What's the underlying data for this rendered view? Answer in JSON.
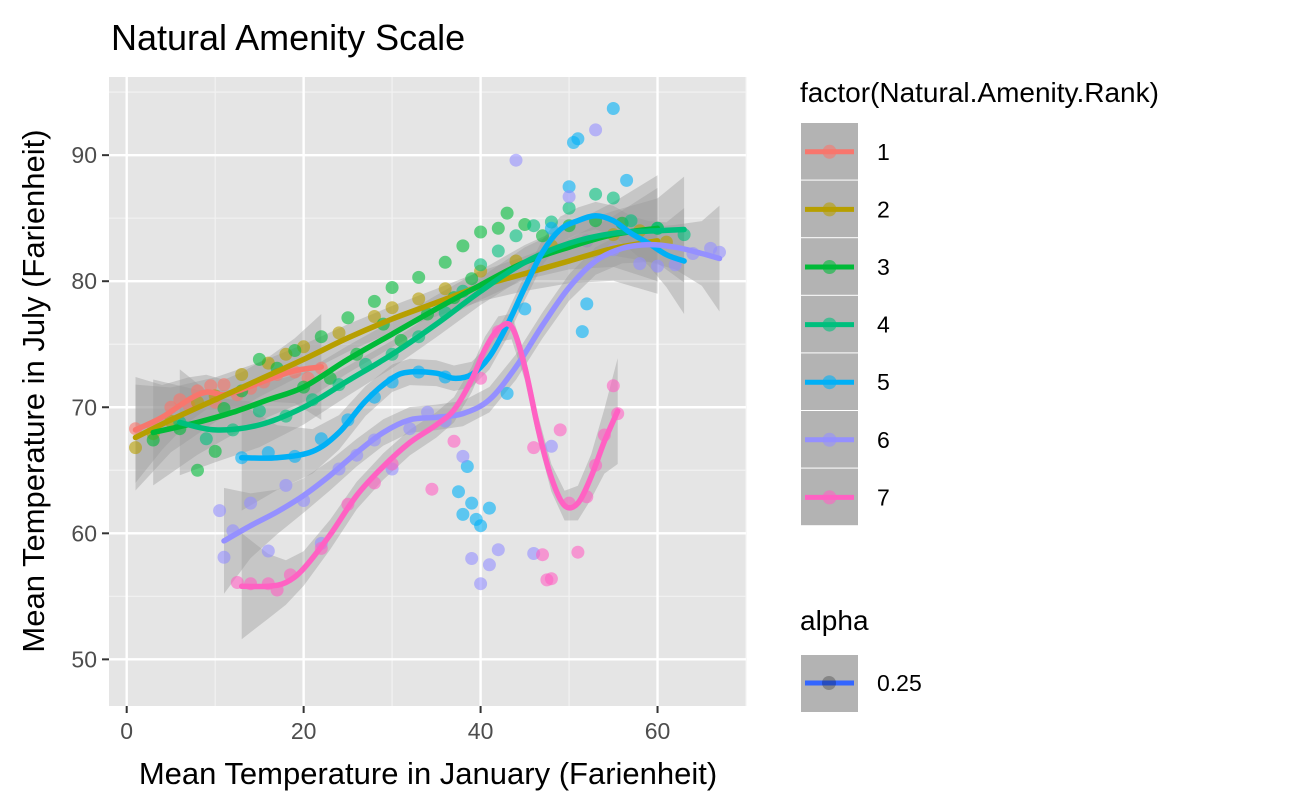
{
  "chart_data": {
    "type": "scatter",
    "title": "Natural Amenity Scale",
    "xlabel": "Mean Temperature in January (Farienheit)",
    "ylabel": "Mean Temperature in July (Farienheit)",
    "xlim": [
      -2,
      70
    ],
    "ylim": [
      46.3,
      96.2
    ],
    "x_ticks": [
      0,
      20,
      40,
      60
    ],
    "y_ticks": [
      50,
      60,
      70,
      80,
      90
    ],
    "grid": true,
    "panel_background": "#e5e5e5",
    "smoother": "loess with grey confidence band",
    "legend": {
      "placement": "right",
      "color_title": "factor(Natural.Amenity.Rank)",
      "alpha_title": "alpha",
      "alpha_label": "0.25"
    },
    "series": [
      {
        "name": "1",
        "color": "#F8766D",
        "points": [
          [
            1.0,
            68.3
          ],
          [
            3.0,
            68.5
          ],
          [
            5.0,
            70.0
          ],
          [
            6.0,
            70.6
          ],
          [
            7.0,
            70.2
          ],
          [
            8.0,
            71.3
          ],
          [
            9.5,
            71.7
          ],
          [
            10.0,
            70.4
          ],
          [
            11.0,
            71.8
          ],
          [
            12.5,
            71.0
          ],
          [
            14.0,
            71.5
          ],
          [
            15.5,
            72.0
          ],
          [
            17.0,
            72.6
          ],
          [
            19.0,
            72.8
          ],
          [
            20.5,
            72.3
          ],
          [
            22.0,
            73.1
          ]
        ],
        "smooth": [
          [
            1.0,
            68.2
          ],
          [
            4.0,
            69.2
          ],
          [
            7.0,
            70.6
          ],
          [
            9.0,
            71.2
          ],
          [
            11.0,
            71.0
          ],
          [
            13.0,
            71.4
          ],
          [
            16.0,
            72.2
          ],
          [
            19.0,
            72.9
          ],
          [
            22.0,
            73.2
          ]
        ]
      },
      {
        "name": "2",
        "color": "#B79F00",
        "points": [
          [
            1.0,
            66.8
          ],
          [
            3.0,
            67.9
          ],
          [
            5.0,
            68.9
          ],
          [
            8.0,
            70.4
          ],
          [
            10.0,
            70.9
          ],
          [
            13.0,
            72.6
          ],
          [
            16.0,
            73.5
          ],
          [
            18.0,
            74.2
          ],
          [
            20.0,
            74.8
          ],
          [
            24.0,
            75.9
          ],
          [
            28.0,
            77.2
          ],
          [
            30.0,
            77.9
          ],
          [
            33.0,
            78.6
          ],
          [
            36.0,
            79.4
          ],
          [
            40.0,
            80.8
          ],
          [
            44.0,
            81.6
          ],
          [
            48.0,
            82.8
          ],
          [
            52.0,
            83.2
          ],
          [
            55.0,
            83.7
          ],
          [
            58.0,
            84.0
          ],
          [
            61.0,
            83.1
          ]
        ],
        "smooth": [
          [
            1.0,
            67.6
          ],
          [
            5.0,
            69.0
          ],
          [
            10.0,
            70.6
          ],
          [
            15.0,
            72.2
          ],
          [
            20.0,
            73.8
          ],
          [
            25.0,
            75.5
          ],
          [
            30.0,
            77.0
          ],
          [
            35.0,
            78.3
          ],
          [
            40.0,
            79.6
          ],
          [
            45.0,
            80.6
          ],
          [
            50.0,
            81.6
          ],
          [
            55.0,
            82.6
          ],
          [
            60.0,
            83.2
          ]
        ]
      },
      {
        "name": "3",
        "color": "#00BA38",
        "points": [
          [
            3.0,
            67.4
          ],
          [
            6.0,
            68.3
          ],
          [
            8.0,
            65.0
          ],
          [
            10.0,
            66.5
          ],
          [
            11.0,
            69.9
          ],
          [
            13.0,
            71.3
          ],
          [
            15.0,
            73.8
          ],
          [
            17.0,
            73.1
          ],
          [
            19.0,
            74.5
          ],
          [
            20.0,
            71.6
          ],
          [
            22.0,
            75.6
          ],
          [
            23.0,
            72.3
          ],
          [
            25.0,
            77.1
          ],
          [
            26.0,
            74.2
          ],
          [
            28.0,
            78.4
          ],
          [
            29.0,
            76.6
          ],
          [
            30.0,
            79.5
          ],
          [
            31.0,
            75.3
          ],
          [
            33.0,
            80.3
          ],
          [
            34.0,
            77.4
          ],
          [
            36.0,
            81.5
          ],
          [
            37.0,
            78.7
          ],
          [
            38.0,
            82.8
          ],
          [
            39.0,
            80.2
          ],
          [
            40.0,
            83.9
          ],
          [
            42.0,
            84.2
          ],
          [
            43.0,
            85.4
          ],
          [
            45.0,
            84.5
          ],
          [
            47.0,
            83.6
          ],
          [
            50.0,
            84.4
          ],
          [
            53.0,
            84.8
          ],
          [
            56.0,
            84.6
          ],
          [
            60.0,
            84.2
          ]
        ],
        "smooth": [
          [
            3.0,
            68.0
          ],
          [
            8.0,
            68.8
          ],
          [
            12.0,
            69.6
          ],
          [
            16.0,
            70.6
          ],
          [
            20.0,
            71.6
          ],
          [
            25.0,
            73.8
          ],
          [
            30.0,
            75.8
          ],
          [
            35.0,
            77.8
          ],
          [
            40.0,
            79.7
          ],
          [
            45.0,
            81.5
          ],
          [
            50.0,
            82.7
          ],
          [
            55.0,
            83.7
          ],
          [
            60.0,
            84.2
          ]
        ]
      },
      {
        "name": "4",
        "color": "#00BF7D",
        "points": [
          [
            6.0,
            68.8
          ],
          [
            9.0,
            67.5
          ],
          [
            12.0,
            68.2
          ],
          [
            15.0,
            69.7
          ],
          [
            18.0,
            69.3
          ],
          [
            21.0,
            70.6
          ],
          [
            24.0,
            71.8
          ],
          [
            27.0,
            73.4
          ],
          [
            30.0,
            74.2
          ],
          [
            33.0,
            75.6
          ],
          [
            36.0,
            77.5
          ],
          [
            38.0,
            79.2
          ],
          [
            40.0,
            81.3
          ],
          [
            42.0,
            82.4
          ],
          [
            44.0,
            83.6
          ],
          [
            46.0,
            84.4
          ],
          [
            48.0,
            84.7
          ],
          [
            50.0,
            85.8
          ],
          [
            53.0,
            86.9
          ],
          [
            55.0,
            86.6
          ],
          [
            57.0,
            84.8
          ],
          [
            60.0,
            84.2
          ],
          [
            63.0,
            83.7
          ]
        ],
        "smooth": [
          [
            6.0,
            68.8
          ],
          [
            10.0,
            68.2
          ],
          [
            15.0,
            68.6
          ],
          [
            20.0,
            70.0
          ],
          [
            25.0,
            72.1
          ],
          [
            30.0,
            74.2
          ],
          [
            35.0,
            76.6
          ],
          [
            40.0,
            79.2
          ],
          [
            45.0,
            81.5
          ],
          [
            50.0,
            83.0
          ],
          [
            55.0,
            83.8
          ],
          [
            60.0,
            84.0
          ],
          [
            63.0,
            84.1
          ]
        ]
      },
      {
        "name": "5",
        "color": "#00B0F6",
        "points": [
          [
            13.0,
            66.0
          ],
          [
            16.0,
            66.4
          ],
          [
            19.0,
            66.1
          ],
          [
            22.0,
            67.5
          ],
          [
            25.0,
            69.0
          ],
          [
            28.0,
            70.8
          ],
          [
            30.0,
            72.0
          ],
          [
            33.0,
            72.8
          ],
          [
            36.0,
            72.4
          ],
          [
            37.5,
            63.3
          ],
          [
            38.0,
            61.5
          ],
          [
            38.5,
            65.3
          ],
          [
            39.0,
            62.4
          ],
          [
            39.5,
            61.1
          ],
          [
            40.0,
            60.6
          ],
          [
            41.0,
            62.0
          ],
          [
            43.0,
            71.1
          ],
          [
            45.0,
            77.8
          ],
          [
            48.0,
            84.2
          ],
          [
            50.0,
            87.5
          ],
          [
            50.5,
            91.0
          ],
          [
            51.0,
            91.3
          ],
          [
            51.5,
            76.0
          ],
          [
            52.0,
            78.2
          ],
          [
            55.0,
            93.7
          ],
          [
            56.5,
            88.0
          ]
        ],
        "smooth": [
          [
            13.0,
            66.0
          ],
          [
            17.0,
            66.0
          ],
          [
            21.0,
            66.5
          ],
          [
            24.0,
            68.0
          ],
          [
            27.0,
            70.5
          ],
          [
            30.0,
            72.3
          ],
          [
            32.0,
            72.8
          ],
          [
            35.0,
            72.7
          ],
          [
            37.0,
            72.3
          ],
          [
            39.0,
            72.6
          ],
          [
            41.0,
            74.0
          ],
          [
            43.0,
            76.5
          ],
          [
            45.0,
            79.5
          ],
          [
            47.0,
            82.3
          ],
          [
            49.0,
            84.1
          ],
          [
            51.0,
            84.8
          ],
          [
            53.0,
            85.2
          ],
          [
            55.0,
            84.8
          ],
          [
            57.0,
            83.8
          ],
          [
            59.0,
            83.0
          ],
          [
            61.0,
            82.1
          ],
          [
            63.0,
            81.6
          ]
        ]
      },
      {
        "name": "6",
        "color": "#9590FF",
        "points": [
          [
            10.5,
            61.8
          ],
          [
            11.0,
            58.1
          ],
          [
            12.0,
            60.2
          ],
          [
            14.0,
            62.4
          ],
          [
            16.0,
            58.6
          ],
          [
            18.0,
            63.8
          ],
          [
            20.0,
            62.6
          ],
          [
            22.0,
            59.2
          ],
          [
            24.0,
            65.1
          ],
          [
            26.0,
            66.2
          ],
          [
            28.0,
            67.4
          ],
          [
            30.0,
            65.1
          ],
          [
            32.0,
            68.3
          ],
          [
            34.0,
            69.6
          ],
          [
            36.0,
            68.9
          ],
          [
            38.0,
            66.1
          ],
          [
            39.0,
            58.0
          ],
          [
            40.0,
            56.0
          ],
          [
            41.0,
            57.5
          ],
          [
            42.0,
            58.7
          ],
          [
            44.0,
            89.6
          ],
          [
            46.0,
            58.4
          ],
          [
            48.0,
            66.9
          ],
          [
            50.0,
            86.7
          ],
          [
            52.0,
            83.2
          ],
          [
            53.0,
            92.0
          ],
          [
            55.0,
            82.5
          ],
          [
            58.0,
            81.4
          ],
          [
            60.0,
            81.2
          ],
          [
            62.0,
            81.3
          ],
          [
            64.0,
            82.2
          ],
          [
            66.0,
            82.6
          ],
          [
            67.0,
            82.3
          ]
        ],
        "smooth": [
          [
            11.0,
            59.4
          ],
          [
            14.0,
            60.6
          ],
          [
            17.0,
            61.7
          ],
          [
            20.0,
            63.0
          ],
          [
            23.0,
            64.6
          ],
          [
            26.0,
            66.4
          ],
          [
            29.0,
            68.0
          ],
          [
            32.0,
            69.0
          ],
          [
            35.0,
            69.2
          ],
          [
            38.0,
            69.5
          ],
          [
            41.0,
            70.6
          ],
          [
            44.0,
            73.2
          ],
          [
            47.0,
            76.5
          ],
          [
            50.0,
            79.5
          ],
          [
            53.0,
            81.6
          ],
          [
            56.0,
            82.6
          ],
          [
            59.0,
            82.9
          ],
          [
            62.0,
            82.7
          ],
          [
            65.0,
            82.2
          ],
          [
            67.0,
            81.8
          ]
        ]
      },
      {
        "name": "7",
        "color": "#FF61C3",
        "points": [
          [
            12.5,
            56.1
          ],
          [
            14.0,
            56.0
          ],
          [
            16.0,
            56.0
          ],
          [
            17.0,
            55.5
          ],
          [
            18.5,
            56.7
          ],
          [
            22.0,
            58.8
          ],
          [
            25.0,
            62.3
          ],
          [
            28.0,
            64.0
          ],
          [
            30.0,
            65.5
          ],
          [
            34.5,
            63.5
          ],
          [
            37.0,
            67.3
          ],
          [
            40.0,
            72.3
          ],
          [
            42.0,
            76.0
          ],
          [
            46.0,
            66.8
          ],
          [
            47.0,
            58.3
          ],
          [
            47.5,
            56.3
          ],
          [
            48.0,
            56.4
          ],
          [
            49.0,
            68.2
          ],
          [
            50.0,
            62.4
          ],
          [
            51.0,
            58.5
          ],
          [
            52.0,
            62.9
          ],
          [
            53.0,
            65.4
          ],
          [
            54.0,
            67.8
          ],
          [
            55.0,
            71.7
          ],
          [
            55.5,
            69.5
          ]
        ],
        "smooth": [
          [
            13.0,
            55.8
          ],
          [
            16.0,
            55.8
          ],
          [
            18.0,
            56.1
          ],
          [
            20.0,
            57.2
          ],
          [
            23.0,
            59.9
          ],
          [
            26.0,
            63.0
          ],
          [
            29.0,
            65.3
          ],
          [
            32.0,
            67.2
          ],
          [
            35.0,
            68.6
          ],
          [
            37.0,
            69.8
          ],
          [
            39.0,
            72.2
          ],
          [
            40.5,
            74.6
          ],
          [
            42.0,
            76.2
          ],
          [
            43.5,
            76.4
          ],
          [
            45.0,
            73.2
          ],
          [
            46.5,
            68.3
          ],
          [
            48.0,
            64.4
          ],
          [
            49.5,
            62.2
          ],
          [
            51.0,
            62.4
          ],
          [
            52.5,
            64.5
          ],
          [
            54.0,
            67.3
          ],
          [
            55.5,
            69.7
          ]
        ]
      }
    ]
  }
}
